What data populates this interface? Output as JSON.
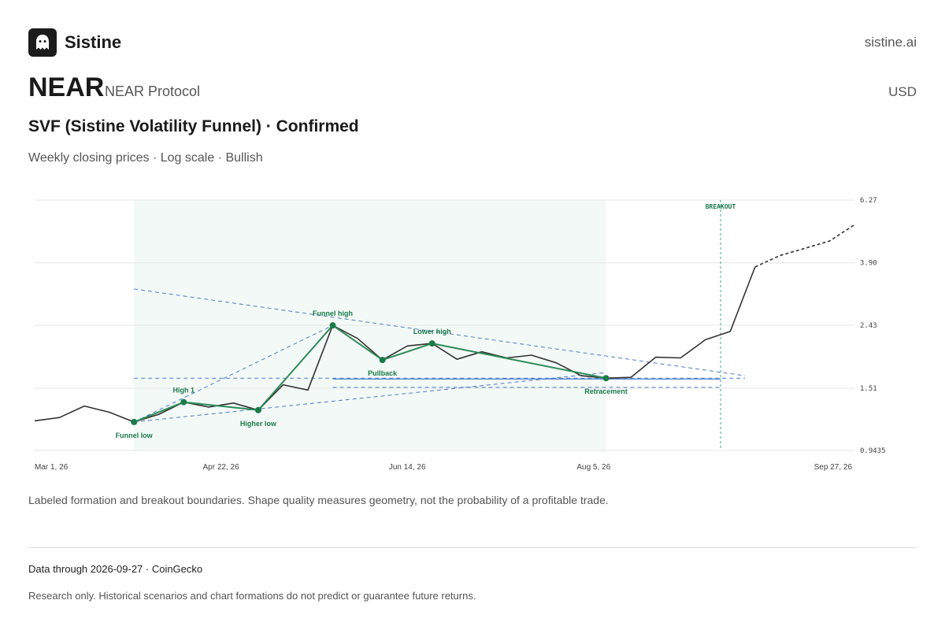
{
  "header": {
    "brand": "Sistine",
    "site": "sistine.ai",
    "logo_icon": "ghost-icon"
  },
  "asset": {
    "ticker": "NEAR",
    "name": "NEAR Protocol",
    "currency": "USD"
  },
  "title": "SVF (Sistine Volatility Funnel) · Confirmed",
  "subtitle": "Weekly closing prices · Log scale · Bullish",
  "note": "Labeled formation and breakout boundaries. Shape quality measures geometry, not the probability of a profitable trade.",
  "footer": {
    "data_through": "Data through 2026-09-27 · CoinGecko",
    "disclaimer": "Research only. Historical scenarios and chart formations do not predict or guarantee future returns."
  },
  "colors": {
    "price": "#333333",
    "pattern": "#2e8b57",
    "pivot": "#1a7a4a",
    "trend": "#4a7bd0",
    "highlight": "#f3f9f6",
    "breakout": "#3aaa8c"
  },
  "chart_data": {
    "type": "line",
    "scale": "log",
    "ylim": [
      0.9435,
      6.27
    ],
    "y_ticks": [
      "6.27",
      "3.90",
      "2.43",
      "1.51",
      "0.9435"
    ],
    "x_ticks": [
      "Mar 1, 26",
      "Apr 22, 26",
      "Jun 14, 26",
      "Aug 5, 26",
      "Sep 27, 26"
    ],
    "grid": true,
    "series": [
      {
        "values": [
          1.18,
          1.21,
          1.32,
          1.26,
          1.17,
          1.24,
          1.36,
          1.31,
          1.35,
          1.28,
          1.55,
          1.49,
          2.43,
          2.2,
          1.87,
          2.08,
          2.12,
          1.88,
          1.99,
          1.9,
          1.94,
          1.83,
          1.66,
          1.63,
          1.64,
          1.91,
          1.9,
          2.18,
          2.32,
          3.78,
          4.12,
          4.35,
          4.6,
          5.2
        ]
      }
    ],
    "pattern_points": [
      {
        "label": "Funnel low",
        "value": 1.17
      },
      {
        "label": "High 1",
        "value": 1.36
      },
      {
        "label": "Higher low",
        "value": 1.28
      },
      {
        "label": "Funnel high",
        "value": 2.43
      },
      {
        "label": "Pullback",
        "value": 1.87
      },
      {
        "label": "Lower high",
        "value": 2.12
      },
      {
        "label": "Retracement",
        "value": 1.63
      }
    ],
    "breakout_label": "BREAKOUT"
  }
}
